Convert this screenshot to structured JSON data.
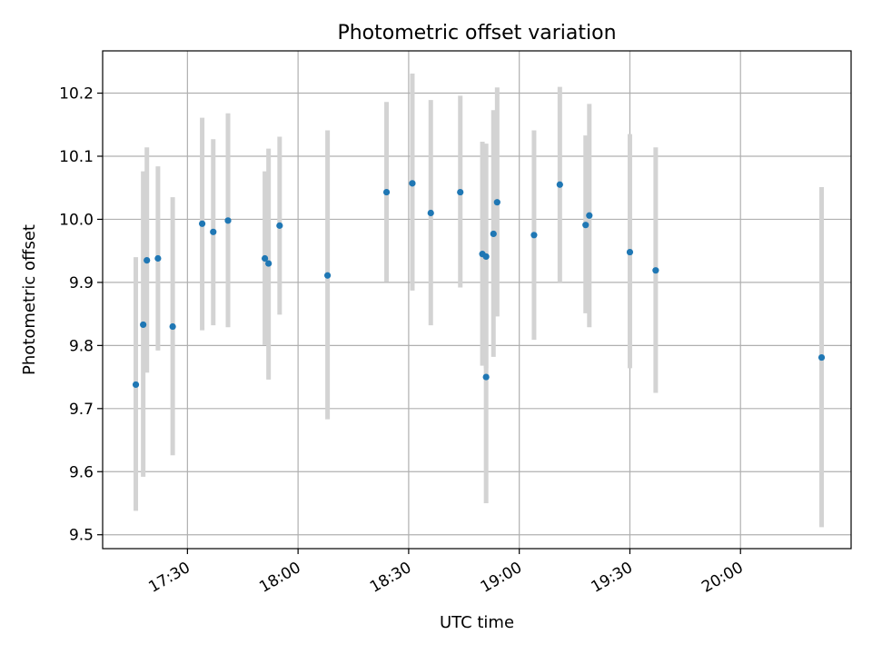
{
  "chart_data": {
    "type": "scatter",
    "title": "Photometric offset variation",
    "xlabel": "UTC time",
    "ylabel": "Photometric offset",
    "x_format": "HH:MM (UTC)",
    "xlim": [
      "17:07",
      "20:30"
    ],
    "ylim": [
      9.478,
      10.267
    ],
    "x_ticks": [
      "17:30",
      "18:00",
      "18:30",
      "19:00",
      "19:30",
      "20:00"
    ],
    "y_ticks": [
      "9.5",
      "9.6",
      "9.7",
      "9.8",
      "9.9",
      "10.0",
      "10.1",
      "10.2"
    ],
    "grid": true,
    "legend": "none",
    "point_color": "#1f77b4",
    "errorbar_color": "#d3d3d3",
    "points": [
      {
        "x": "17:16",
        "y": 9.738,
        "err_low": 9.538,
        "err_high": 9.94
      },
      {
        "x": "17:18",
        "y": 9.833,
        "err_low": 9.592,
        "err_high": 10.076
      },
      {
        "x": "17:19",
        "y": 9.935,
        "err_low": 9.757,
        "err_high": 10.114
      },
      {
        "x": "17:22",
        "y": 9.938,
        "err_low": 9.792,
        "err_high": 10.084
      },
      {
        "x": "17:26",
        "y": 9.83,
        "err_low": 9.626,
        "err_high": 10.035
      },
      {
        "x": "17:34",
        "y": 9.993,
        "err_low": 9.824,
        "err_high": 10.161
      },
      {
        "x": "17:37",
        "y": 9.98,
        "err_low": 9.832,
        "err_high": 10.127
      },
      {
        "x": "17:41",
        "y": 9.998,
        "err_low": 9.829,
        "err_high": 10.168
      },
      {
        "x": "17:51",
        "y": 9.938,
        "err_low": 9.801,
        "err_high": 10.076
      },
      {
        "x": "17:52",
        "y": 9.93,
        "err_low": 9.746,
        "err_high": 10.112
      },
      {
        "x": "17:55",
        "y": 9.99,
        "err_low": 9.849,
        "err_high": 10.131
      },
      {
        "x": "18:08",
        "y": 9.911,
        "err_low": 9.683,
        "err_high": 10.141
      },
      {
        "x": "18:24",
        "y": 10.043,
        "err_low": 9.901,
        "err_high": 10.186
      },
      {
        "x": "18:31",
        "y": 10.057,
        "err_low": 9.887,
        "err_high": 10.231
      },
      {
        "x": "18:36",
        "y": 10.01,
        "err_low": 9.832,
        "err_high": 10.189
      },
      {
        "x": "18:44",
        "y": 10.043,
        "err_low": 9.892,
        "err_high": 10.196
      },
      {
        "x": "18:50",
        "y": 9.945,
        "err_low": 9.768,
        "err_high": 10.123
      },
      {
        "x": "18:51",
        "y": 9.941,
        "err_low": 9.764,
        "err_high": 10.12
      },
      {
        "x": "18:51",
        "y": 9.75,
        "err_low": 9.55,
        "err_high": 9.95
      },
      {
        "x": "18:53",
        "y": 9.977,
        "err_low": 9.782,
        "err_high": 10.173
      },
      {
        "x": "18:54",
        "y": 10.027,
        "err_low": 9.846,
        "err_high": 10.209
      },
      {
        "x": "19:04",
        "y": 9.975,
        "err_low": 9.809,
        "err_high": 10.141
      },
      {
        "x": "19:11",
        "y": 10.055,
        "err_low": 9.9,
        "err_high": 10.21
      },
      {
        "x": "19:18",
        "y": 9.991,
        "err_low": 9.851,
        "err_high": 10.133
      },
      {
        "x": "19:19",
        "y": 10.006,
        "err_low": 9.829,
        "err_high": 10.183
      },
      {
        "x": "19:30",
        "y": 9.948,
        "err_low": 9.764,
        "err_high": 10.135
      },
      {
        "x": "19:37",
        "y": 9.919,
        "err_low": 9.725,
        "err_high": 10.114
      },
      {
        "x": "20:22",
        "y": 9.781,
        "err_low": 9.512,
        "err_high": 10.051
      }
    ]
  }
}
